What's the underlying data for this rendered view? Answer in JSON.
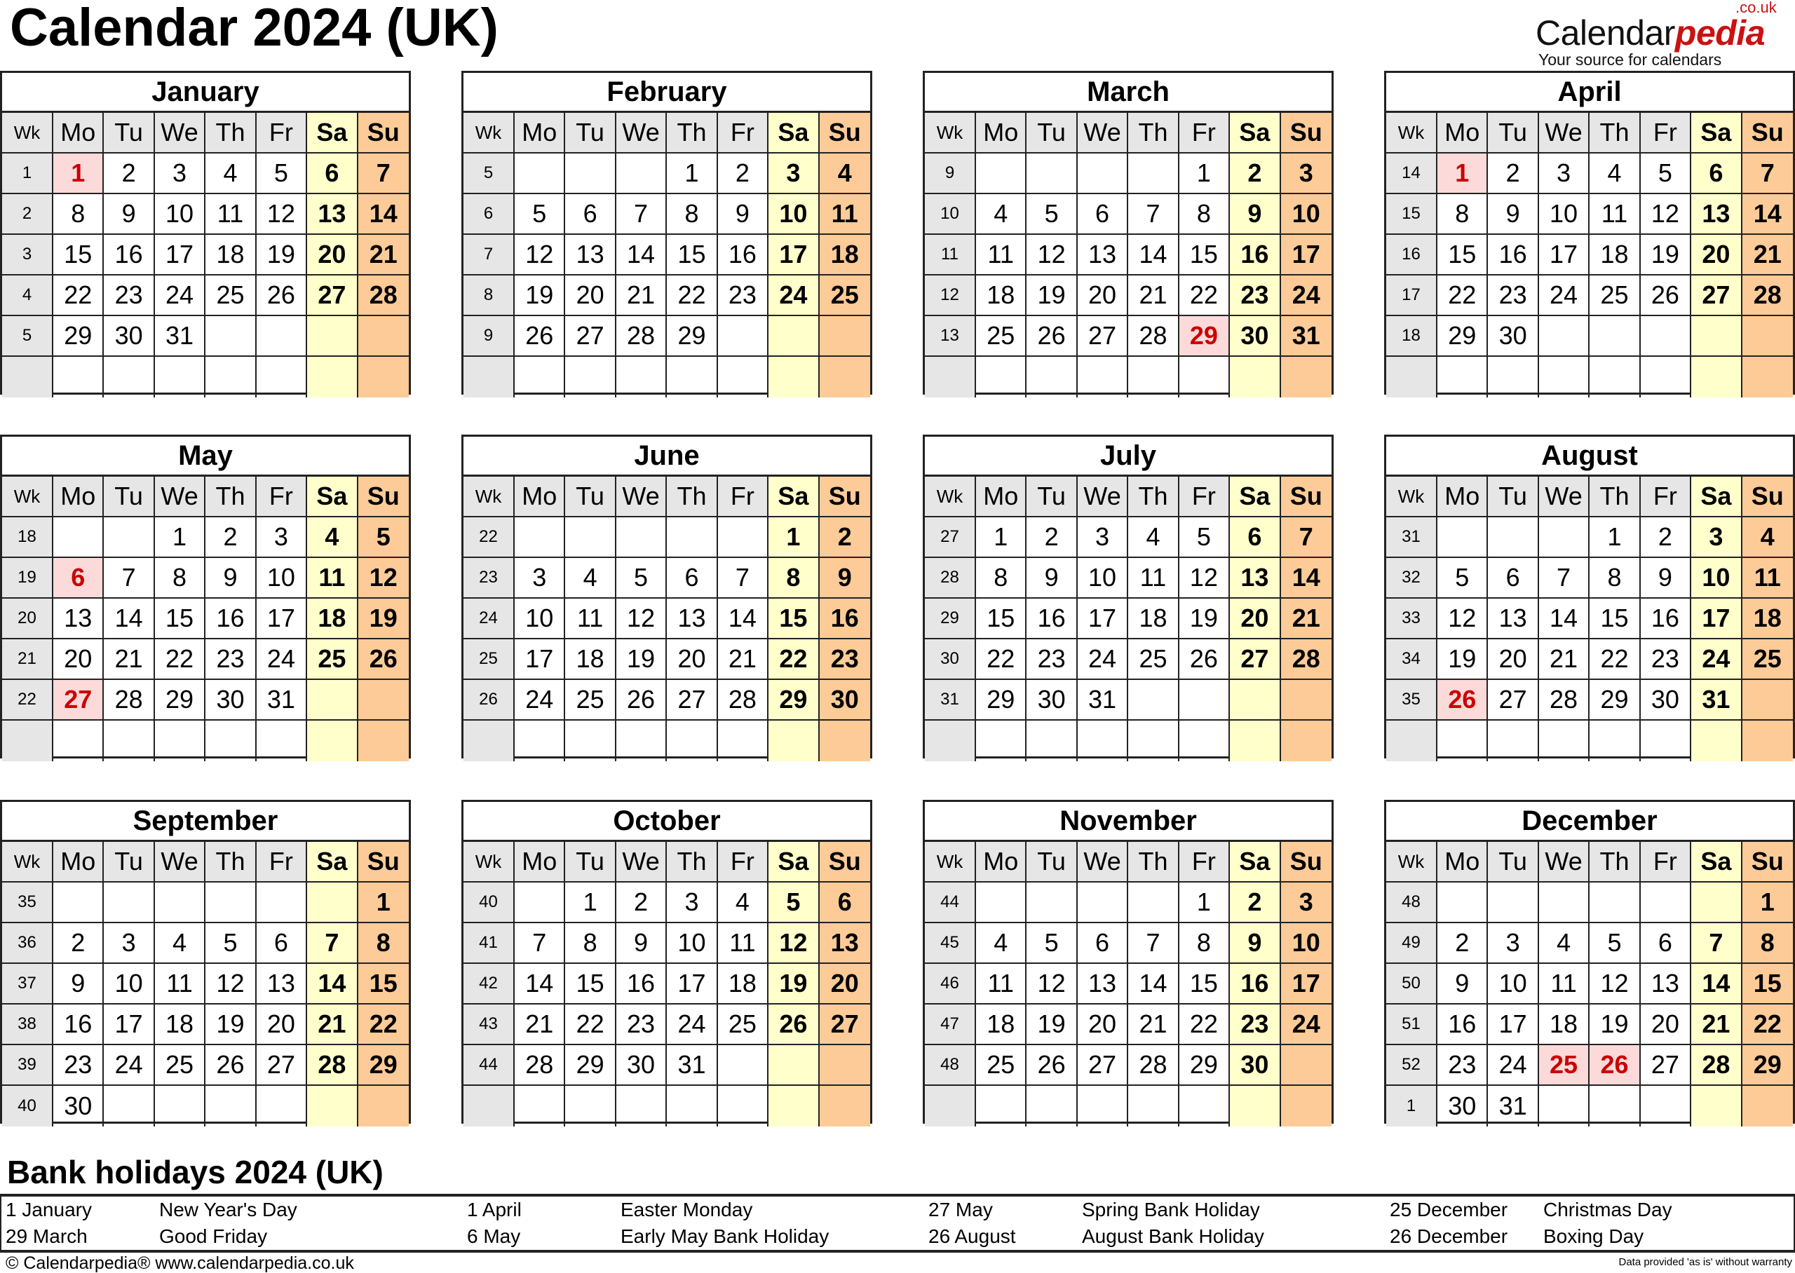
{
  "title": "Calendar 2024 (UK)",
  "logo": {
    "main": "Calendar",
    "accent": "pedia",
    "suffix": ".co.uk",
    "tagline": "Your source for calendars"
  },
  "weekday_headers": [
    "Wk",
    "Mo",
    "Tu",
    "We",
    "Th",
    "Fr",
    "Sa",
    "Su"
  ],
  "colors": {
    "header": "#e6e6e6",
    "saturday": "#ffffcc",
    "sunday": "#fdcb98",
    "holiday_bg": "#fddada",
    "holiday_text": "#cc0000"
  },
  "months": [
    {
      "name": "January",
      "holidays": [
        1
      ],
      "rows": [
        {
          "wk": "1",
          "days": [
            1,
            2,
            3,
            4,
            5,
            6,
            7
          ]
        },
        {
          "wk": "2",
          "days": [
            8,
            9,
            10,
            11,
            12,
            13,
            14
          ]
        },
        {
          "wk": "3",
          "days": [
            15,
            16,
            17,
            18,
            19,
            20,
            21
          ]
        },
        {
          "wk": "4",
          "days": [
            22,
            23,
            24,
            25,
            26,
            27,
            28
          ]
        },
        {
          "wk": "5",
          "days": [
            29,
            30,
            31,
            null,
            null,
            null,
            null
          ]
        },
        {
          "wk": "",
          "days": [
            null,
            null,
            null,
            null,
            null,
            null,
            null
          ]
        }
      ]
    },
    {
      "name": "February",
      "holidays": [],
      "rows": [
        {
          "wk": "5",
          "days": [
            null,
            null,
            null,
            1,
            2,
            3,
            4
          ]
        },
        {
          "wk": "6",
          "days": [
            5,
            6,
            7,
            8,
            9,
            10,
            11
          ]
        },
        {
          "wk": "7",
          "days": [
            12,
            13,
            14,
            15,
            16,
            17,
            18
          ]
        },
        {
          "wk": "8",
          "days": [
            19,
            20,
            21,
            22,
            23,
            24,
            25
          ]
        },
        {
          "wk": "9",
          "days": [
            26,
            27,
            28,
            29,
            null,
            null,
            null
          ]
        },
        {
          "wk": "",
          "days": [
            null,
            null,
            null,
            null,
            null,
            null,
            null
          ]
        }
      ]
    },
    {
      "name": "March",
      "holidays": [
        29
      ],
      "rows": [
        {
          "wk": "9",
          "days": [
            null,
            null,
            null,
            null,
            1,
            2,
            3
          ]
        },
        {
          "wk": "10",
          "days": [
            4,
            5,
            6,
            7,
            8,
            9,
            10
          ]
        },
        {
          "wk": "11",
          "days": [
            11,
            12,
            13,
            14,
            15,
            16,
            17
          ]
        },
        {
          "wk": "12",
          "days": [
            18,
            19,
            20,
            21,
            22,
            23,
            24
          ]
        },
        {
          "wk": "13",
          "days": [
            25,
            26,
            27,
            28,
            29,
            30,
            31
          ]
        },
        {
          "wk": "",
          "days": [
            null,
            null,
            null,
            null,
            null,
            null,
            null
          ]
        }
      ]
    },
    {
      "name": "April",
      "holidays": [
        1
      ],
      "rows": [
        {
          "wk": "14",
          "days": [
            1,
            2,
            3,
            4,
            5,
            6,
            7
          ]
        },
        {
          "wk": "15",
          "days": [
            8,
            9,
            10,
            11,
            12,
            13,
            14
          ]
        },
        {
          "wk": "16",
          "days": [
            15,
            16,
            17,
            18,
            19,
            20,
            21
          ]
        },
        {
          "wk": "17",
          "days": [
            22,
            23,
            24,
            25,
            26,
            27,
            28
          ]
        },
        {
          "wk": "18",
          "days": [
            29,
            30,
            null,
            null,
            null,
            null,
            null
          ]
        },
        {
          "wk": "",
          "days": [
            null,
            null,
            null,
            null,
            null,
            null,
            null
          ]
        }
      ]
    },
    {
      "name": "May",
      "holidays": [
        6,
        27
      ],
      "rows": [
        {
          "wk": "18",
          "days": [
            null,
            null,
            1,
            2,
            3,
            4,
            5
          ]
        },
        {
          "wk": "19",
          "days": [
            6,
            7,
            8,
            9,
            10,
            11,
            12
          ]
        },
        {
          "wk": "20",
          "days": [
            13,
            14,
            15,
            16,
            17,
            18,
            19
          ]
        },
        {
          "wk": "21",
          "days": [
            20,
            21,
            22,
            23,
            24,
            25,
            26
          ]
        },
        {
          "wk": "22",
          "days": [
            27,
            28,
            29,
            30,
            31,
            null,
            null
          ]
        },
        {
          "wk": "",
          "days": [
            null,
            null,
            null,
            null,
            null,
            null,
            null
          ]
        }
      ]
    },
    {
      "name": "June",
      "holidays": [],
      "rows": [
        {
          "wk": "22",
          "days": [
            null,
            null,
            null,
            null,
            null,
            1,
            2
          ]
        },
        {
          "wk": "23",
          "days": [
            3,
            4,
            5,
            6,
            7,
            8,
            9
          ]
        },
        {
          "wk": "24",
          "days": [
            10,
            11,
            12,
            13,
            14,
            15,
            16
          ]
        },
        {
          "wk": "25",
          "days": [
            17,
            18,
            19,
            20,
            21,
            22,
            23
          ]
        },
        {
          "wk": "26",
          "days": [
            24,
            25,
            26,
            27,
            28,
            29,
            30
          ]
        },
        {
          "wk": "",
          "days": [
            null,
            null,
            null,
            null,
            null,
            null,
            null
          ]
        }
      ]
    },
    {
      "name": "July",
      "holidays": [],
      "rows": [
        {
          "wk": "27",
          "days": [
            1,
            2,
            3,
            4,
            5,
            6,
            7
          ]
        },
        {
          "wk": "28",
          "days": [
            8,
            9,
            10,
            11,
            12,
            13,
            14
          ]
        },
        {
          "wk": "29",
          "days": [
            15,
            16,
            17,
            18,
            19,
            20,
            21
          ]
        },
        {
          "wk": "30",
          "days": [
            22,
            23,
            24,
            25,
            26,
            27,
            28
          ]
        },
        {
          "wk": "31",
          "days": [
            29,
            30,
            31,
            null,
            null,
            null,
            null
          ]
        },
        {
          "wk": "",
          "days": [
            null,
            null,
            null,
            null,
            null,
            null,
            null
          ]
        }
      ]
    },
    {
      "name": "August",
      "holidays": [
        26
      ],
      "rows": [
        {
          "wk": "31",
          "days": [
            null,
            null,
            null,
            1,
            2,
            3,
            4
          ]
        },
        {
          "wk": "32",
          "days": [
            5,
            6,
            7,
            8,
            9,
            10,
            11
          ]
        },
        {
          "wk": "33",
          "days": [
            12,
            13,
            14,
            15,
            16,
            17,
            18
          ]
        },
        {
          "wk": "34",
          "days": [
            19,
            20,
            21,
            22,
            23,
            24,
            25
          ]
        },
        {
          "wk": "35",
          "days": [
            26,
            27,
            28,
            29,
            30,
            31,
            null
          ]
        },
        {
          "wk": "",
          "days": [
            null,
            null,
            null,
            null,
            null,
            null,
            null
          ]
        }
      ]
    },
    {
      "name": "September",
      "holidays": [],
      "rows": [
        {
          "wk": "35",
          "days": [
            null,
            null,
            null,
            null,
            null,
            null,
            1
          ]
        },
        {
          "wk": "36",
          "days": [
            2,
            3,
            4,
            5,
            6,
            7,
            8
          ]
        },
        {
          "wk": "37",
          "days": [
            9,
            10,
            11,
            12,
            13,
            14,
            15
          ]
        },
        {
          "wk": "38",
          "days": [
            16,
            17,
            18,
            19,
            20,
            21,
            22
          ]
        },
        {
          "wk": "39",
          "days": [
            23,
            24,
            25,
            26,
            27,
            28,
            29
          ]
        },
        {
          "wk": "40",
          "days": [
            30,
            null,
            null,
            null,
            null,
            null,
            null
          ]
        }
      ]
    },
    {
      "name": "October",
      "holidays": [],
      "rows": [
        {
          "wk": "40",
          "days": [
            null,
            1,
            2,
            3,
            4,
            5,
            6
          ]
        },
        {
          "wk": "41",
          "days": [
            7,
            8,
            9,
            10,
            11,
            12,
            13
          ]
        },
        {
          "wk": "42",
          "days": [
            14,
            15,
            16,
            17,
            18,
            19,
            20
          ]
        },
        {
          "wk": "43",
          "days": [
            21,
            22,
            23,
            24,
            25,
            26,
            27
          ]
        },
        {
          "wk": "44",
          "days": [
            28,
            29,
            30,
            31,
            null,
            null,
            null
          ]
        },
        {
          "wk": "",
          "days": [
            null,
            null,
            null,
            null,
            null,
            null,
            null
          ]
        }
      ]
    },
    {
      "name": "November",
      "holidays": [],
      "rows": [
        {
          "wk": "44",
          "days": [
            null,
            null,
            null,
            null,
            1,
            2,
            3
          ]
        },
        {
          "wk": "45",
          "days": [
            4,
            5,
            6,
            7,
            8,
            9,
            10
          ]
        },
        {
          "wk": "46",
          "days": [
            11,
            12,
            13,
            14,
            15,
            16,
            17
          ]
        },
        {
          "wk": "47",
          "days": [
            18,
            19,
            20,
            21,
            22,
            23,
            24
          ]
        },
        {
          "wk": "48",
          "days": [
            25,
            26,
            27,
            28,
            29,
            30,
            null
          ]
        },
        {
          "wk": "",
          "days": [
            null,
            null,
            null,
            null,
            null,
            null,
            null
          ]
        }
      ]
    },
    {
      "name": "December",
      "holidays": [
        25,
        26
      ],
      "rows": [
        {
          "wk": "48",
          "days": [
            null,
            null,
            null,
            null,
            null,
            null,
            1
          ]
        },
        {
          "wk": "49",
          "days": [
            2,
            3,
            4,
            5,
            6,
            7,
            8
          ]
        },
        {
          "wk": "50",
          "days": [
            9,
            10,
            11,
            12,
            13,
            14,
            15
          ]
        },
        {
          "wk": "51",
          "days": [
            16,
            17,
            18,
            19,
            20,
            21,
            22
          ]
        },
        {
          "wk": "52",
          "days": [
            23,
            24,
            25,
            26,
            27,
            28,
            29
          ]
        },
        {
          "wk": "1",
          "days": [
            30,
            31,
            null,
            null,
            null,
            null,
            null
          ]
        }
      ]
    }
  ],
  "bank_holidays": {
    "title": "Bank holidays 2024 (UK)",
    "items": [
      {
        "date": "1 January",
        "name": "New Year's Day"
      },
      {
        "date": "29 March",
        "name": "Good Friday"
      },
      {
        "date": "1 April",
        "name": "Easter Monday"
      },
      {
        "date": "6 May",
        "name": "Early May Bank Holiday"
      },
      {
        "date": "27 May",
        "name": "Spring Bank Holiday"
      },
      {
        "date": "26 August",
        "name": "August Bank Holiday"
      },
      {
        "date": "25 December",
        "name": "Christmas Day"
      },
      {
        "date": "26 December",
        "name": "Boxing Day"
      }
    ]
  },
  "footer": {
    "copyright": "© Calendarpedia®   www.calendarpedia.co.uk",
    "disclaimer": "Data provided 'as is' without warranty"
  }
}
